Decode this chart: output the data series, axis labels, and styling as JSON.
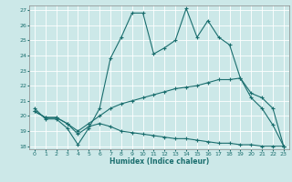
{
  "xlabel": "Humidex (Indice chaleur)",
  "bg_color": "#cce8e8",
  "line_color": "#1a6e6e",
  "grid_color": "#ffffff",
  "xlim": [
    -0.5,
    23.5
  ],
  "ylim": [
    17.8,
    27.3
  ],
  "xticks": [
    0,
    1,
    2,
    3,
    4,
    5,
    6,
    7,
    8,
    9,
    10,
    11,
    12,
    13,
    14,
    15,
    16,
    17,
    18,
    19,
    20,
    21,
    22,
    23
  ],
  "yticks": [
    18,
    19,
    20,
    21,
    22,
    23,
    24,
    25,
    26,
    27
  ],
  "line1_x": [
    0,
    1,
    2,
    3,
    4,
    5,
    6,
    7,
    8,
    9,
    10,
    11,
    12,
    13,
    14,
    15,
    16,
    17,
    18,
    19,
    20,
    21,
    22,
    23
  ],
  "line1_y": [
    20.5,
    19.8,
    19.8,
    19.2,
    18.1,
    19.2,
    20.5,
    23.8,
    25.2,
    26.8,
    26.8,
    24.1,
    24.5,
    25.0,
    27.1,
    25.2,
    26.3,
    25.2,
    24.7,
    22.5,
    21.2,
    20.5,
    19.4,
    18.0
  ],
  "line2_x": [
    0,
    1,
    2,
    3,
    4,
    5,
    6,
    7,
    8,
    9,
    10,
    11,
    12,
    13,
    14,
    15,
    16,
    17,
    18,
    19,
    20,
    21,
    22,
    23
  ],
  "line2_y": [
    20.3,
    19.9,
    19.9,
    19.5,
    19.0,
    19.5,
    20.0,
    20.5,
    20.8,
    21.0,
    21.2,
    21.4,
    21.6,
    21.8,
    21.9,
    22.0,
    22.2,
    22.4,
    22.4,
    22.5,
    21.5,
    21.2,
    20.5,
    18.0
  ],
  "line3_x": [
    0,
    1,
    2,
    3,
    4,
    5,
    6,
    7,
    8,
    9,
    10,
    11,
    12,
    13,
    14,
    15,
    16,
    17,
    18,
    19,
    20,
    21,
    22,
    23
  ],
  "line3_y": [
    20.3,
    19.9,
    19.9,
    19.5,
    18.8,
    19.3,
    19.5,
    19.3,
    19.0,
    18.9,
    18.8,
    18.7,
    18.6,
    18.5,
    18.5,
    18.4,
    18.3,
    18.2,
    18.2,
    18.1,
    18.1,
    18.0,
    18.0,
    18.0
  ]
}
